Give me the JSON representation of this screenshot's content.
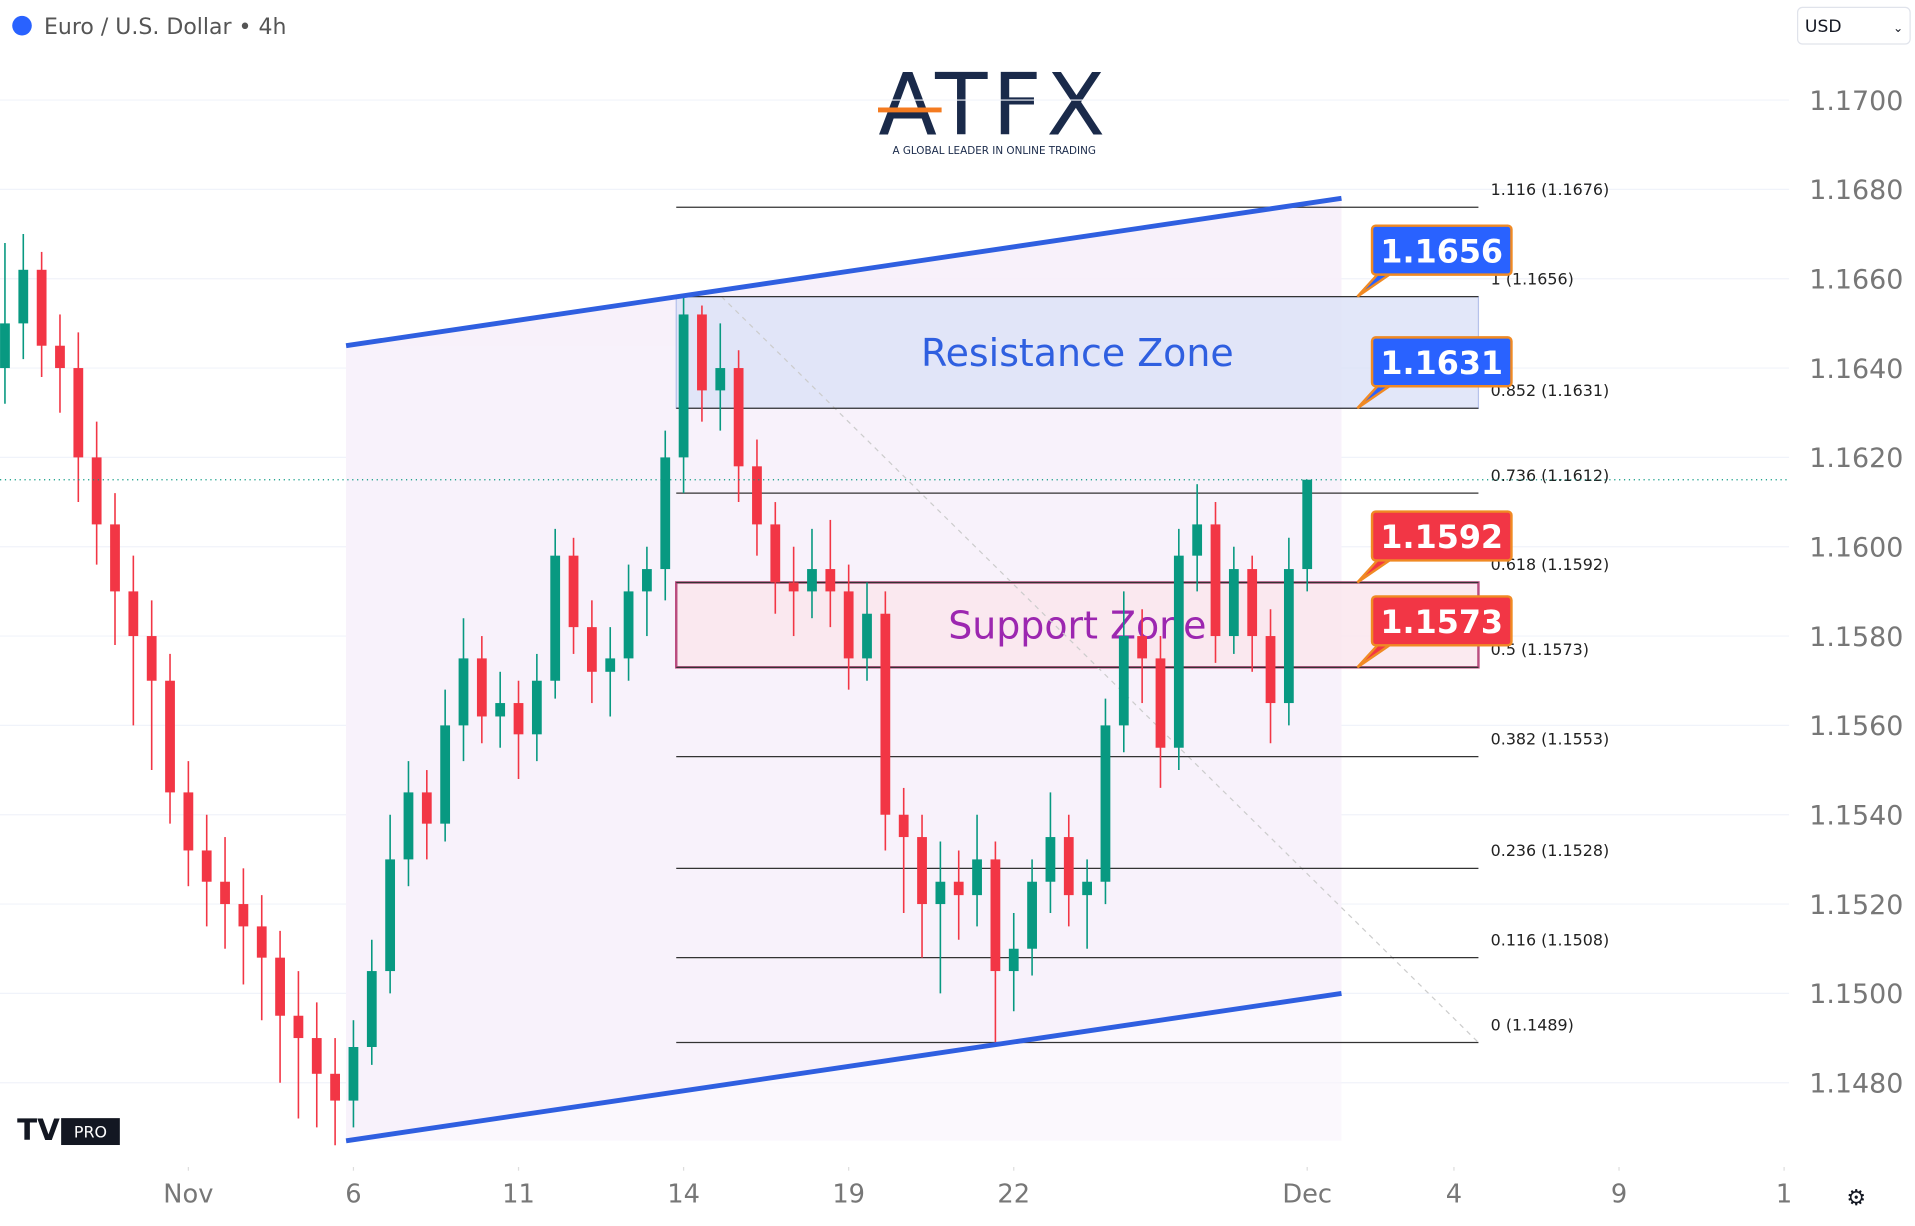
{
  "header": {
    "title": "Euro / U.S. Dollar • 4h",
    "currency": "USD",
    "logo": "ATFX",
    "tagline": "A GLOBAL LEADER IN ONLINE TRADING",
    "badge": "PRO"
  },
  "chart_data": {
    "type": "candlestick",
    "up_color": "#089981",
    "down_color": "#f23645",
    "xlim": [
      -0.27,
      97.27
    ],
    "xticks": [
      {
        "value": 10,
        "label": "Nov"
      },
      {
        "value": 19,
        "label": "6"
      },
      {
        "value": 28,
        "label": "11"
      },
      {
        "value": 37,
        "label": "14"
      },
      {
        "value": 46,
        "label": "19"
      },
      {
        "value": 55,
        "label": "22"
      },
      {
        "value": 71,
        "label": "Dec"
      },
      {
        "value": 79,
        "label": "4"
      },
      {
        "value": 88,
        "label": "9"
      },
      {
        "value": 97,
        "label": "1"
      }
    ],
    "ylim": [
      1.14625,
      1.17224
    ],
    "yticks": [
      {
        "value": 1.148,
        "label": "1.1480"
      },
      {
        "value": 1.15,
        "label": "1.1500"
      },
      {
        "value": 1.152,
        "label": "1.1520"
      },
      {
        "value": 1.154,
        "label": "1.1540"
      },
      {
        "value": 1.156,
        "label": "1.1560"
      },
      {
        "value": 1.158,
        "label": "1.1580"
      },
      {
        "value": 1.16,
        "label": "1.1600"
      },
      {
        "value": 1.162,
        "label": "1.1620"
      },
      {
        "value": 1.164,
        "label": "1.1640"
      },
      {
        "value": 1.166,
        "label": "1.1660"
      },
      {
        "value": 1.168,
        "label": "1.1680"
      },
      {
        "value": 1.17,
        "label": "1.1700"
      }
    ],
    "grid": true,
    "candles": [
      [
        1.164,
        1.1668,
        1.1632,
        1.165
      ],
      [
        1.165,
        1.167,
        1.1642,
        1.1662
      ],
      [
        1.1662,
        1.1666,
        1.1638,
        1.1645
      ],
      [
        1.1645,
        1.1652,
        1.163,
        1.164
      ],
      [
        1.164,
        1.1648,
        1.161,
        1.162
      ],
      [
        1.162,
        1.1628,
        1.1596,
        1.1605
      ],
      [
        1.1605,
        1.1612,
        1.1578,
        1.159
      ],
      [
        1.159,
        1.1598,
        1.156,
        1.158
      ],
      [
        1.158,
        1.1588,
        1.155,
        1.157
      ],
      [
        1.157,
        1.1576,
        1.1538,
        1.1545
      ],
      [
        1.1545,
        1.1552,
        1.1524,
        1.1532
      ],
      [
        1.1532,
        1.154,
        1.1515,
        1.1525
      ],
      [
        1.1525,
        1.1535,
        1.151,
        1.152
      ],
      [
        1.152,
        1.1528,
        1.1502,
        1.1515
      ],
      [
        1.1515,
        1.1522,
        1.1494,
        1.1508
      ],
      [
        1.1508,
        1.1514,
        1.148,
        1.1495
      ],
      [
        1.1495,
        1.1505,
        1.1472,
        1.149
      ],
      [
        1.149,
        1.1498,
        1.147,
        1.1482
      ],
      [
        1.1482,
        1.149,
        1.1466,
        1.1476
      ],
      [
        1.1476,
        1.1494,
        1.147,
        1.1488
      ],
      [
        1.1488,
        1.1512,
        1.1484,
        1.1505
      ],
      [
        1.1505,
        1.154,
        1.15,
        1.153
      ],
      [
        1.153,
        1.1552,
        1.1524,
        1.1545
      ],
      [
        1.1545,
        1.155,
        1.153,
        1.1538
      ],
      [
        1.1538,
        1.1568,
        1.1534,
        1.156
      ],
      [
        1.156,
        1.1584,
        1.1552,
        1.1575
      ],
      [
        1.1575,
        1.158,
        1.1556,
        1.1562
      ],
      [
        1.1562,
        1.1572,
        1.1555,
        1.1565
      ],
      [
        1.1565,
        1.157,
        1.1548,
        1.1558
      ],
      [
        1.1558,
        1.1576,
        1.1552,
        1.157
      ],
      [
        1.157,
        1.1604,
        1.1566,
        1.1598
      ],
      [
        1.1598,
        1.1602,
        1.1576,
        1.1582
      ],
      [
        1.1582,
        1.1588,
        1.1565,
        1.1572
      ],
      [
        1.1572,
        1.1582,
        1.1562,
        1.1575
      ],
      [
        1.1575,
        1.1596,
        1.157,
        1.159
      ],
      [
        1.159,
        1.16,
        1.158,
        1.1595
      ],
      [
        1.1595,
        1.1626,
        1.1588,
        1.162
      ],
      [
        1.162,
        1.1656,
        1.1612,
        1.1652
      ],
      [
        1.1652,
        1.1654,
        1.1628,
        1.1635
      ],
      [
        1.1635,
        1.165,
        1.1626,
        1.164
      ],
      [
        1.164,
        1.1644,
        1.161,
        1.1618
      ],
      [
        1.1618,
        1.1624,
        1.1598,
        1.1605
      ],
      [
        1.1605,
        1.161,
        1.1585,
        1.1592
      ],
      [
        1.1592,
        1.16,
        1.158,
        1.159
      ],
      [
        1.159,
        1.1604,
        1.1584,
        1.1595
      ],
      [
        1.1595,
        1.1606,
        1.1582,
        1.159
      ],
      [
        1.159,
        1.1596,
        1.1568,
        1.1575
      ],
      [
        1.1575,
        1.1592,
        1.157,
        1.1585
      ],
      [
        1.1585,
        1.159,
        1.1532,
        1.154
      ],
      [
        1.154,
        1.1546,
        1.1518,
        1.1535
      ],
      [
        1.1535,
        1.154,
        1.1508,
        1.152
      ],
      [
        1.152,
        1.1534,
        1.15,
        1.1525
      ],
      [
        1.1525,
        1.1532,
        1.1512,
        1.1522
      ],
      [
        1.1522,
        1.154,
        1.1515,
        1.153
      ],
      [
        1.153,
        1.1534,
        1.1489,
        1.1505
      ],
      [
        1.1505,
        1.1518,
        1.1496,
        1.151
      ],
      [
        1.151,
        1.153,
        1.1504,
        1.1525
      ],
      [
        1.1525,
        1.1545,
        1.1518,
        1.1535
      ],
      [
        1.1535,
        1.154,
        1.1515,
        1.1522
      ],
      [
        1.1522,
        1.153,
        1.151,
        1.1525
      ],
      [
        1.1525,
        1.1566,
        1.152,
        1.156
      ],
      [
        1.156,
        1.159,
        1.1554,
        1.158
      ],
      [
        1.158,
        1.1586,
        1.1565,
        1.1575
      ],
      [
        1.1575,
        1.158,
        1.1546,
        1.1555
      ],
      [
        1.1555,
        1.1604,
        1.155,
        1.1598
      ],
      [
        1.1598,
        1.1614,
        1.159,
        1.1605
      ],
      [
        1.1605,
        1.161,
        1.1574,
        1.158
      ],
      [
        1.158,
        1.16,
        1.1576,
        1.1595
      ],
      [
        1.1595,
        1.1598,
        1.1572,
        1.158
      ],
      [
        1.158,
        1.1586,
        1.1556,
        1.1565
      ],
      [
        1.1565,
        1.1602,
        1.156,
        1.1595
      ],
      [
        1.1595,
        1.1615,
        1.159,
        1.1615
      ]
    ],
    "channel": {
      "upper": [
        1.1645,
        1.1678
      ],
      "lower": [
        1.1467,
        1.15
      ],
      "color": "#2f5fe0"
    },
    "fib_levels": [
      {
        "value": 1.1676,
        "label": "1.116 (1.1676)"
      },
      {
        "value": 1.1656,
        "label": "1 (1.1656)"
      },
      {
        "value": 1.1631,
        "label": "0.852 (1.1631)"
      },
      {
        "value": 1.1612,
        "label": "0.736 (1.1612)"
      },
      {
        "value": 1.1592,
        "label": "0.618 (1.1592)"
      },
      {
        "value": 1.1573,
        "label": "0.5 (1.1573)"
      },
      {
        "value": 1.1553,
        "label": "0.382 (1.1553)"
      },
      {
        "value": 1.1528,
        "label": "0.236 (1.1528)"
      },
      {
        "value": 1.1508,
        "label": "0.116 (1.1508)"
      },
      {
        "value": 1.1489,
        "label": "0 (1.1489)"
      }
    ],
    "zones": [
      {
        "name": "Resistance Zone",
        "low": 1.1631,
        "high": 1.1656,
        "fill": "#dde3f8",
        "text_color": "#2f5fe0"
      },
      {
        "name": "Support Zone",
        "low": 1.1573,
        "high": 1.1592,
        "fill": "#fbe7ee",
        "text_color": "#9c27b0"
      }
    ],
    "price_tags": [
      {
        "value": 1.1656,
        "color": "#2962ff"
      },
      {
        "value": 1.1631,
        "color": "#2962ff"
      },
      {
        "value": 1.1592,
        "color": "#f23645"
      },
      {
        "value": 1.1573,
        "color": "#f23645"
      }
    ]
  }
}
